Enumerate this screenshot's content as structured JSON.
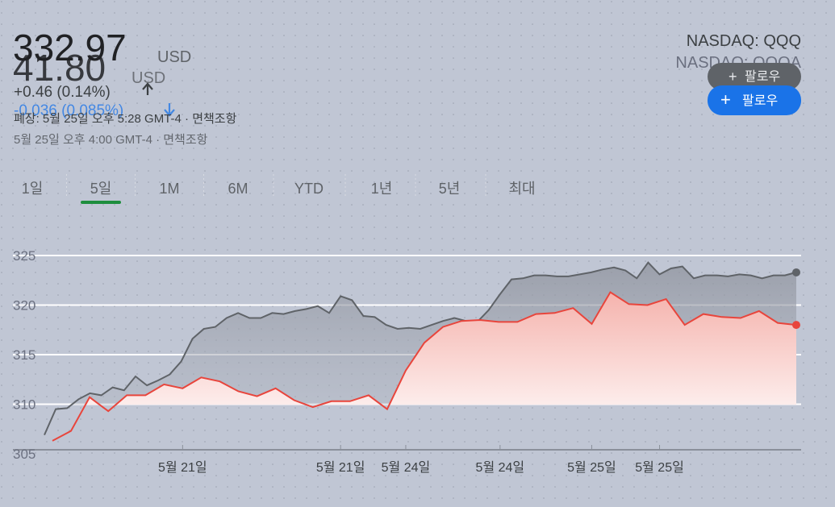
{
  "widgets": [
    {
      "price": "332.97",
      "currency": "USD",
      "change": "+0.46 (0.14%)",
      "timestamp": "폐장: 5월 25일 오후 5:28 GMT-4 · 면책조항",
      "ticker": "NASDAQ: QQQ",
      "follow": "팔로우"
    },
    {
      "price": "41.80",
      "currency": "USD",
      "change": "-0.036 (0.085%)",
      "timestamp": "5월 25일 오후 4:00 GMT-4 · 면책조항",
      "ticker": "NASDAQ: QQQA",
      "follow": "팔로우"
    }
  ],
  "tabs": [
    "1일",
    "5일",
    "1M",
    "6M",
    "YTD",
    "1년",
    "5년",
    "최대"
  ],
  "chart_data": [
    {
      "type": "line",
      "color": "#5f6368",
      "ylim": [
        305.4,
        327.2
      ],
      "yticks": [
        305,
        310,
        315,
        320,
        325
      ],
      "grid": true,
      "categories": [
        null,
        null,
        null,
        null,
        null,
        null,
        null,
        null,
        null,
        null,
        null,
        null,
        null,
        null,
        null,
        null,
        null,
        null,
        null,
        null,
        null,
        null,
        null,
        null,
        null,
        null,
        "5월 21일",
        null,
        null,
        null,
        null,
        null,
        null,
        null,
        null,
        null,
        null,
        null,
        null,
        null,
        "5월 24일",
        null,
        null,
        null,
        null,
        null,
        null,
        null,
        null,
        null,
        null,
        null,
        null,
        null,
        "5월 25일",
        null,
        null,
        null,
        null,
        null,
        null,
        null,
        null,
        null,
        null,
        null,
        null
      ],
      "values": [
        306.9,
        309.5,
        309.6,
        310.5,
        311.1,
        310.9,
        311.7,
        311.4,
        312.8,
        311.9,
        312.4,
        313.0,
        314.3,
        316.6,
        317.6,
        317.8,
        318.7,
        319.2,
        318.7,
        318.7,
        319.2,
        319.1,
        319.4,
        319.6,
        319.9,
        319.2,
        320.9,
        320.5,
        318.9,
        318.8,
        318.0,
        317.6,
        317.7,
        317.6,
        318.0,
        318.4,
        318.7,
        318.4,
        318.3,
        319.5,
        321.1,
        322.6,
        322.7,
        323.0,
        323.0,
        322.9,
        322.9,
        323.1,
        323.3,
        323.6,
        323.8,
        323.5,
        322.7,
        324.3,
        323.1,
        323.7,
        323.9,
        322.7,
        323.0,
        323.0,
        322.9,
        323.1,
        323.0,
        322.7,
        323.0,
        323.0,
        323.3
      ]
    },
    {
      "type": "line",
      "color": "#e8453c",
      "ylim": [
        305.4,
        327.2
      ],
      "categories": [
        null,
        null,
        null,
        null,
        null,
        null,
        null,
        "5월 21일",
        null,
        null,
        null,
        null,
        null,
        null,
        null,
        null,
        null,
        null,
        null,
        "5월 24일",
        null,
        null,
        null,
        null,
        null,
        null,
        null,
        null,
        null,
        "5월 25일",
        null,
        null,
        null,
        null,
        null,
        null,
        null,
        null,
        null,
        null,
        null
      ],
      "values": [
        306.3,
        307.3,
        310.7,
        309.3,
        310.9,
        310.9,
        312.0,
        311.6,
        312.7,
        312.3,
        311.3,
        310.8,
        311.6,
        310.4,
        309.7,
        310.3,
        310.3,
        310.9,
        309.5,
        313.4,
        316.2,
        317.8,
        318.4,
        318.5,
        318.3,
        318.3,
        319.1,
        319.2,
        319.7,
        318.1,
        321.3,
        320.1,
        320.0,
        320.6,
        318.0,
        319.1,
        318.8,
        318.7,
        319.4,
        318.2,
        318.0
      ]
    }
  ]
}
